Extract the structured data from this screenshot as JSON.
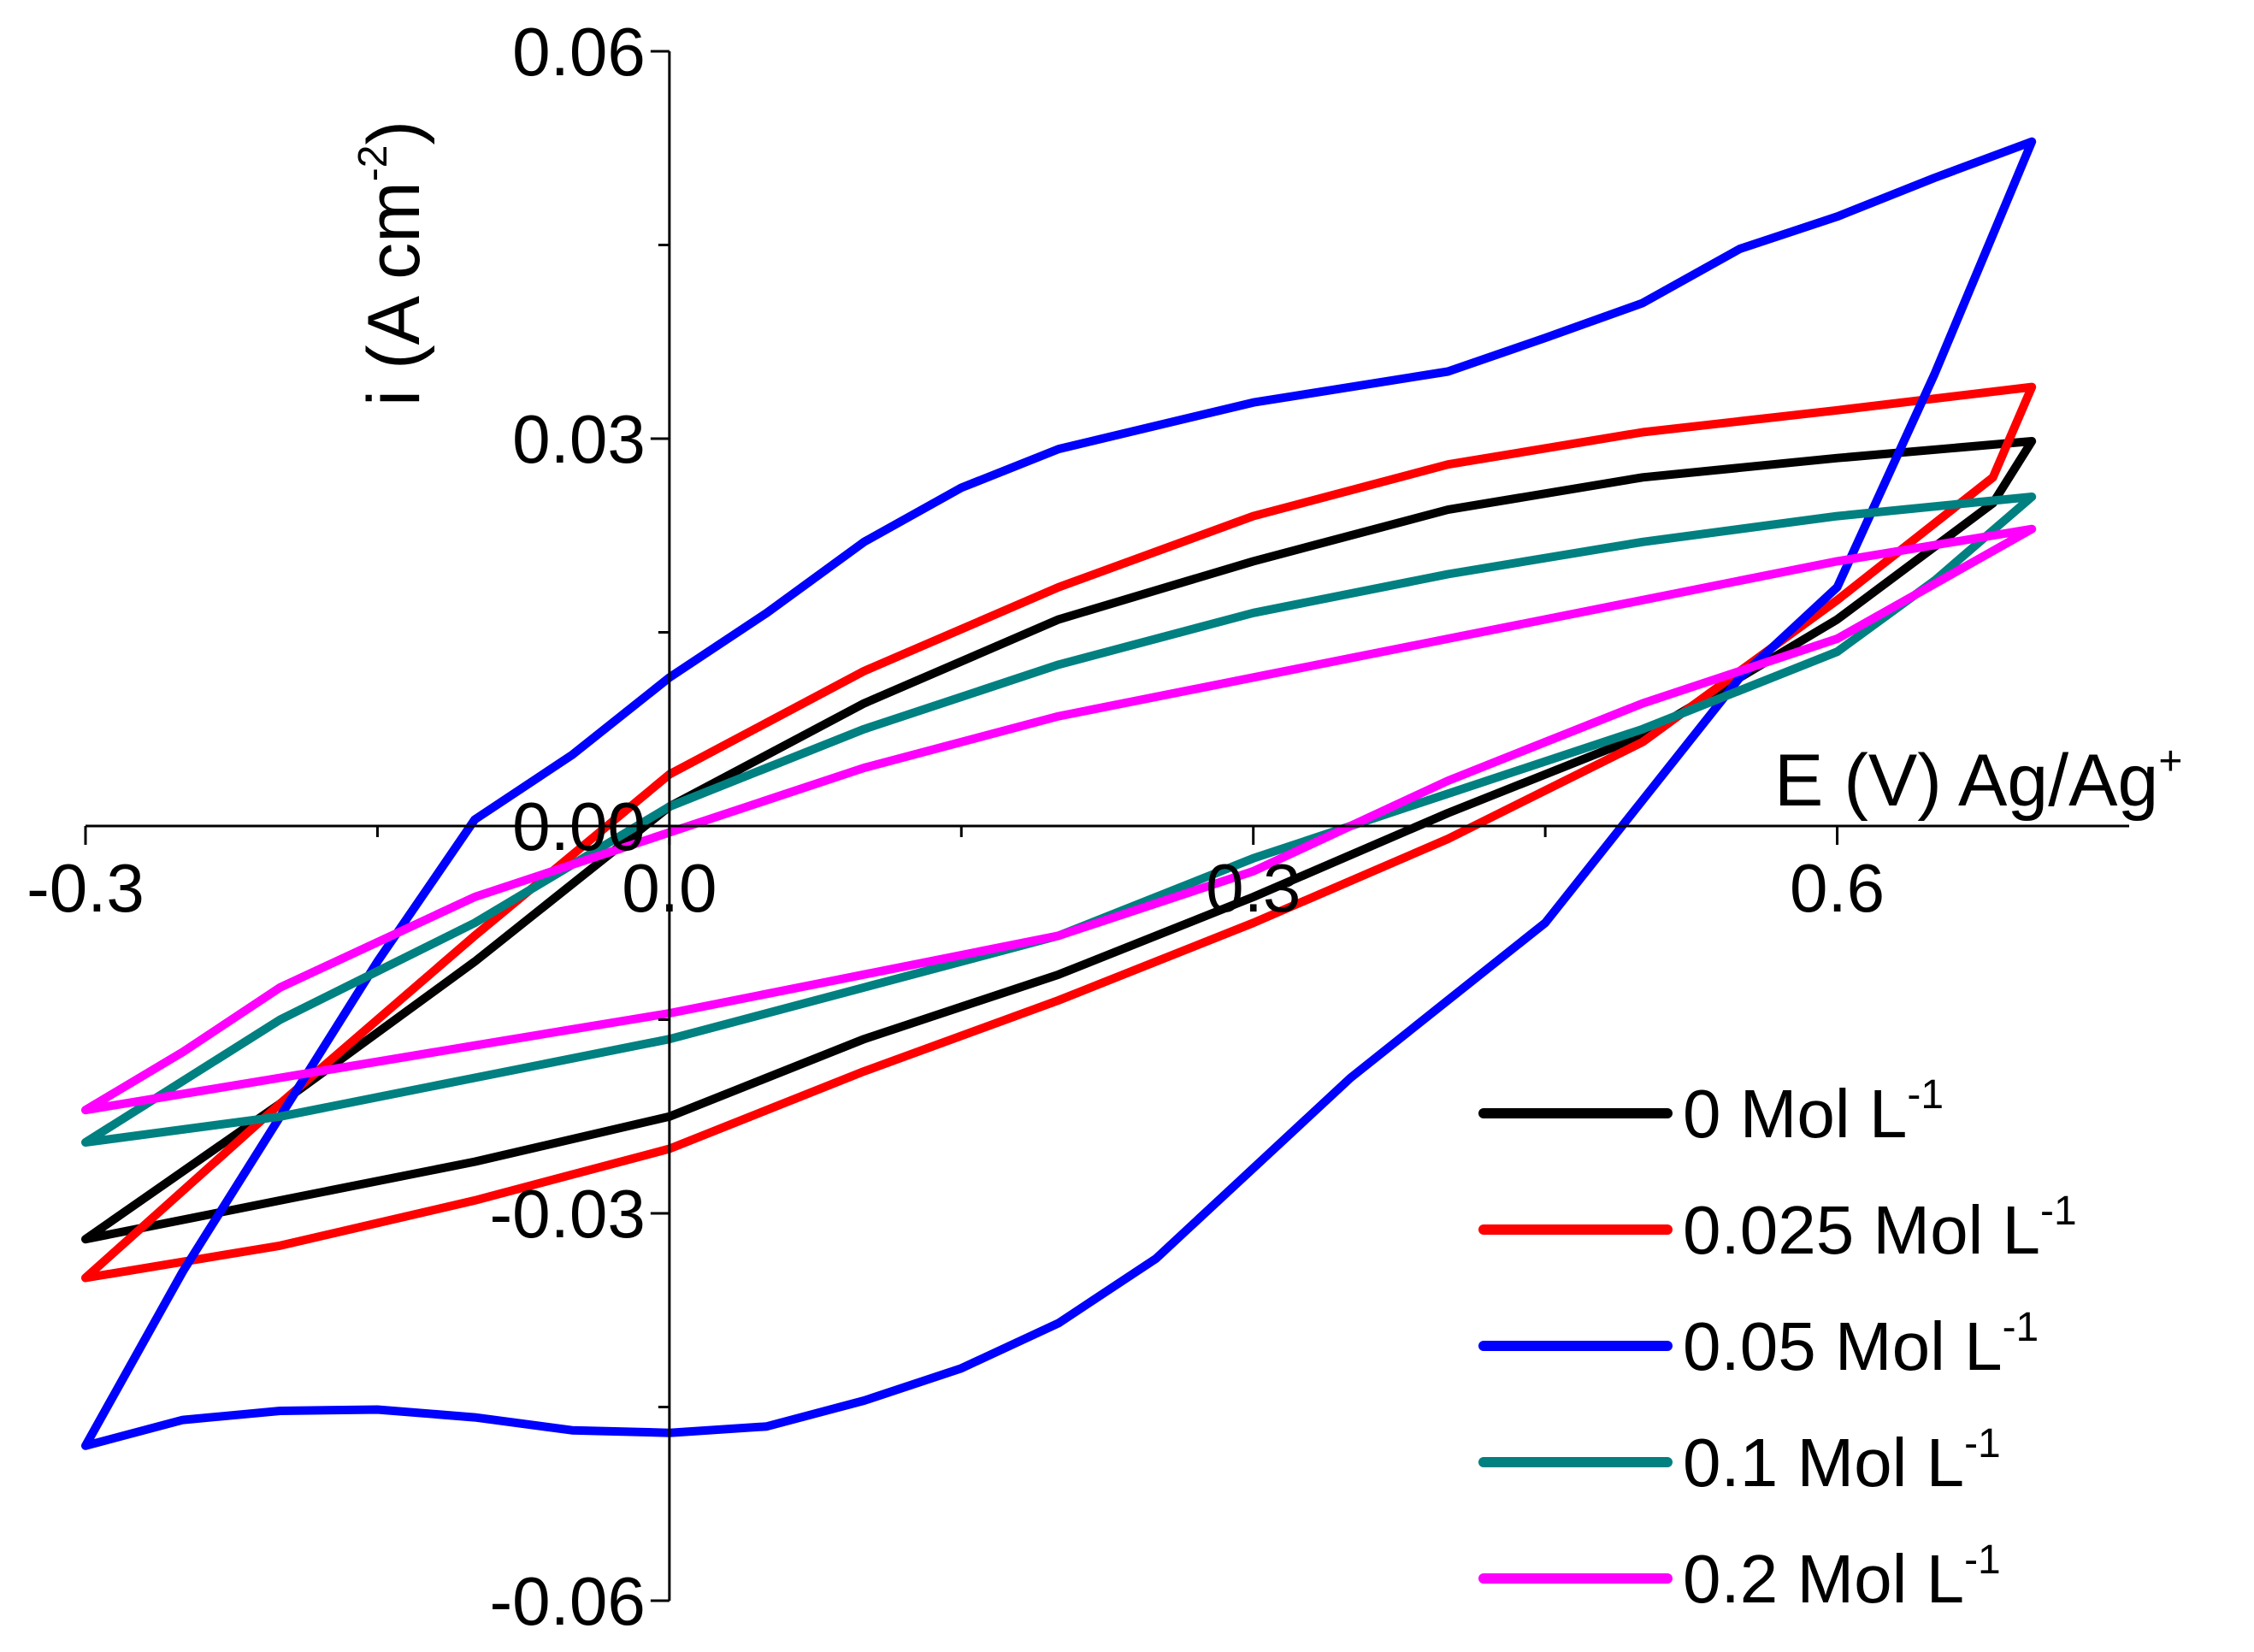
{
  "chart_data": {
    "type": "line",
    "title": "",
    "xlabel": "E (V) Ag/Ag",
    "xlabel_sup": "+",
    "ylabel": "i (A cm",
    "ylabel_sup": "-2",
    "ylabel_close": ")",
    "xlim": [
      -0.3,
      0.75
    ],
    "ylim": [
      -0.06,
      0.06
    ],
    "x_ticks": [
      {
        "value": -0.3,
        "label": "-0.3"
      },
      {
        "value": 0.0,
        "label": "0.0"
      },
      {
        "value": 0.3,
        "label": "0.3"
      },
      {
        "value": 0.6,
        "label": "0.6"
      }
    ],
    "x_minor_ticks": [
      -0.15,
      0.15,
      0.45
    ],
    "y_ticks": [
      {
        "value": 0.06,
        "label": "0.06"
      },
      {
        "value": 0.03,
        "label": "0.03"
      },
      {
        "value": 0.0,
        "label": "0.00"
      },
      {
        "value": -0.03,
        "label": "-0.03"
      },
      {
        "value": -0.06,
        "label": "-0.06"
      }
    ],
    "y_minor_ticks": [
      0.045,
      0.015,
      -0.015,
      -0.045
    ],
    "legend_position": "bottom-right",
    "series": [
      {
        "name": "0 Mol L",
        "sup": "-1",
        "color": "#000000",
        "points": [
          [
            -0.3,
            -0.032
          ],
          [
            -0.2,
            -0.0215
          ],
          [
            -0.1,
            -0.0105
          ],
          [
            0.0,
            0.0015
          ],
          [
            0.1,
            0.0095
          ],
          [
            0.2,
            0.016
          ],
          [
            0.3,
            0.0205
          ],
          [
            0.4,
            0.0245
          ],
          [
            0.5,
            0.027
          ],
          [
            0.6,
            0.0285
          ],
          [
            0.7,
            0.0298
          ],
          [
            0.68,
            0.025
          ],
          [
            0.6,
            0.016
          ],
          [
            0.5,
            0.007
          ],
          [
            0.4,
            0.001
          ],
          [
            0.3,
            -0.0055
          ],
          [
            0.2,
            -0.0115
          ],
          [
            0.1,
            -0.0165
          ],
          [
            0.0,
            -0.0225
          ],
          [
            -0.1,
            -0.026
          ],
          [
            -0.2,
            -0.029
          ],
          [
            -0.3,
            -0.032
          ]
        ]
      },
      {
        "name": "0.025 Mol L",
        "sup": "-1",
        "color": "#ff0000",
        "points": [
          [
            -0.3,
            -0.035
          ],
          [
            -0.2,
            -0.0215
          ],
          [
            -0.1,
            -0.0085
          ],
          [
            0.0,
            0.004
          ],
          [
            0.1,
            0.012
          ],
          [
            0.2,
            0.0185
          ],
          [
            0.3,
            0.024
          ],
          [
            0.4,
            0.028
          ],
          [
            0.5,
            0.0305
          ],
          [
            0.6,
            0.0322
          ],
          [
            0.7,
            0.034
          ],
          [
            0.68,
            0.027
          ],
          [
            0.6,
            0.0175
          ],
          [
            0.5,
            0.0065
          ],
          [
            0.4,
            -0.001
          ],
          [
            0.3,
            -0.0075
          ],
          [
            0.2,
            -0.0135
          ],
          [
            0.1,
            -0.019
          ],
          [
            0.0,
            -0.025
          ],
          [
            -0.1,
            -0.029
          ],
          [
            -0.2,
            -0.0325
          ],
          [
            -0.3,
            -0.035
          ]
        ]
      },
      {
        "name": "0.05 Mol L",
        "sup": "-1",
        "color": "#0000ff",
        "points": [
          [
            -0.3,
            -0.048
          ],
          [
            -0.25,
            -0.0345
          ],
          [
            -0.2,
            -0.0225
          ],
          [
            -0.15,
            -0.0105
          ],
          [
            -0.1,
            0.0005
          ],
          [
            -0.05,
            0.0055
          ],
          [
            0.0,
            0.0115
          ],
          [
            0.05,
            0.0165
          ],
          [
            0.1,
            0.022
          ],
          [
            0.15,
            0.0262
          ],
          [
            0.2,
            0.0292
          ],
          [
            0.3,
            0.0328
          ],
          [
            0.4,
            0.0352
          ],
          [
            0.45,
            0.0378
          ],
          [
            0.5,
            0.0405
          ],
          [
            0.55,
            0.0447
          ],
          [
            0.6,
            0.0472
          ],
          [
            0.65,
            0.0502
          ],
          [
            0.7,
            0.053
          ],
          [
            0.65,
            0.035
          ],
          [
            0.6,
            0.0185
          ],
          [
            0.55,
            0.0115
          ],
          [
            0.5,
            0.002
          ],
          [
            0.45,
            -0.0075
          ],
          [
            0.4,
            -0.0135
          ],
          [
            0.35,
            -0.0195
          ],
          [
            0.3,
            -0.0265
          ],
          [
            0.25,
            -0.0335
          ],
          [
            0.2,
            -0.0385
          ],
          [
            0.15,
            -0.042
          ],
          [
            0.1,
            -0.0445
          ],
          [
            0.05,
            -0.0465
          ],
          [
            0.0,
            -0.047
          ],
          [
            -0.05,
            -0.0468
          ],
          [
            -0.1,
            -0.0458
          ],
          [
            -0.15,
            -0.0452
          ],
          [
            -0.2,
            -0.0453
          ],
          [
            -0.25,
            -0.046
          ],
          [
            -0.3,
            -0.048
          ]
        ]
      },
      {
        "name": "0.1 Mol L",
        "sup": "-1",
        "color": "#008080",
        "points": [
          [
            -0.3,
            -0.0245
          ],
          [
            -0.2,
            -0.015
          ],
          [
            -0.1,
            -0.0075
          ],
          [
            0.0,
            0.0015
          ],
          [
            0.1,
            0.0075
          ],
          [
            0.2,
            0.0125
          ],
          [
            0.3,
            0.0165
          ],
          [
            0.4,
            0.0195
          ],
          [
            0.5,
            0.022
          ],
          [
            0.6,
            0.024
          ],
          [
            0.7,
            0.0255
          ],
          [
            0.65,
            0.019
          ],
          [
            0.6,
            0.0135
          ],
          [
            0.5,
            0.0075
          ],
          [
            0.4,
            0.0025
          ],
          [
            0.3,
            -0.0025
          ],
          [
            0.2,
            -0.0085
          ],
          [
            0.1,
            -0.0125
          ],
          [
            0.0,
            -0.0165
          ],
          [
            -0.1,
            -0.0195
          ],
          [
            -0.2,
            -0.0225
          ],
          [
            -0.3,
            -0.0245
          ]
        ]
      },
      {
        "name": "0.2 Mol L",
        "sup": "-1",
        "color": "#ff00ff",
        "points": [
          [
            -0.3,
            -0.022
          ],
          [
            -0.25,
            -0.0175
          ],
          [
            -0.2,
            -0.0125
          ],
          [
            -0.1,
            -0.0055
          ],
          [
            0.0,
            -0.0005
          ],
          [
            0.1,
            0.0045
          ],
          [
            0.2,
            0.0085
          ],
          [
            0.3,
            0.0115
          ],
          [
            0.4,
            0.0145
          ],
          [
            0.5,
            0.0175
          ],
          [
            0.6,
            0.0205
          ],
          [
            0.7,
            0.023
          ],
          [
            0.6,
            0.0145
          ],
          [
            0.5,
            0.0095
          ],
          [
            0.4,
            0.0035
          ],
          [
            0.3,
            -0.0035
          ],
          [
            0.2,
            -0.0085
          ],
          [
            0.1,
            -0.0115
          ],
          [
            0.0,
            -0.0145
          ],
          [
            -0.1,
            -0.017
          ],
          [
            -0.2,
            -0.0195
          ],
          [
            -0.3,
            -0.022
          ]
        ]
      }
    ]
  }
}
